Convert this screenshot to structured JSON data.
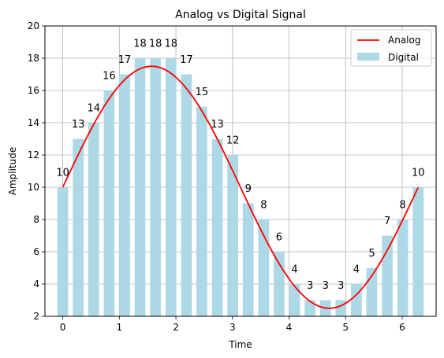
{
  "chart_data": {
    "type": "bar",
    "title": "Analog vs Digital Signal",
    "xlabel": "Time",
    "ylabel": "Amplitude",
    "xlim": [
      -0.315,
      6.6
    ],
    "ylim": [
      2,
      20
    ],
    "xticks": [
      0,
      1,
      2,
      3,
      4,
      5,
      6
    ],
    "yticks": [
      2,
      4,
      6,
      8,
      10,
      12,
      14,
      16,
      18,
      20
    ],
    "grid": true,
    "legend_position": "top-right",
    "series": [
      {
        "name": "Analog",
        "type": "line",
        "color": "#ff0000",
        "function": "10 + 7.5*sin(t)",
        "x_range": [
          0,
          6.2832
        ]
      },
      {
        "name": "Digital",
        "type": "bar",
        "color": "#add8e6",
        "x": [
          0,
          0.2732,
          0.5464,
          0.8195,
          1.0927,
          1.3659,
          1.6391,
          1.9123,
          2.1855,
          2.4586,
          2.7318,
          3.005,
          3.2782,
          3.5514,
          3.8246,
          4.0977,
          4.3709,
          4.6441,
          4.9173,
          5.1905,
          5.4637,
          5.7368,
          6.01,
          6.2832
        ],
        "values": [
          10,
          13,
          14,
          16,
          17,
          18,
          18,
          18,
          17,
          15,
          13,
          12,
          9,
          8,
          6,
          4,
          3,
          3,
          3,
          4,
          5,
          7,
          8,
          10
        ],
        "labels": [
          "10",
          "13",
          "14",
          "16",
          "17",
          "18",
          "18",
          "18",
          "17",
          "15",
          "13",
          "12",
          "9",
          "8",
          "6",
          "4",
          "3",
          "3",
          "3",
          "4",
          "5",
          "7",
          "8",
          "10"
        ]
      }
    ]
  }
}
